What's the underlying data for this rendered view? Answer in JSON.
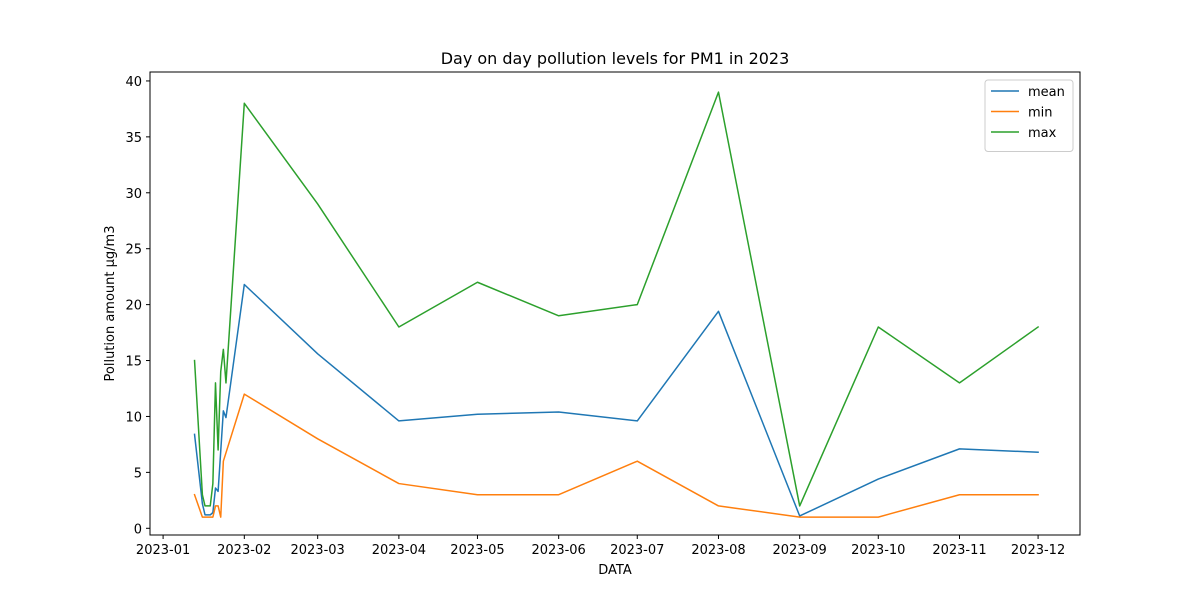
{
  "chart_data": {
    "type": "line",
    "title": "Day on day pollution levels for PM1 in 2023",
    "xlabel": "DATA",
    "ylabel": "Pollution amount µg/m3",
    "xlim": [
      "2022-12-27",
      "2023-12-17"
    ],
    "ylim": [
      -0.6,
      40.8
    ],
    "x_ticks": [
      "2023-01",
      "2023-02",
      "2023-03",
      "2023-04",
      "2023-05",
      "2023-06",
      "2023-07",
      "2023-08",
      "2023-09",
      "2023-10",
      "2023-11",
      "2023-12"
    ],
    "y_ticks": [
      0,
      5,
      10,
      15,
      20,
      25,
      30,
      35,
      40
    ],
    "grid": false,
    "legend_position": "top-right",
    "series": [
      {
        "name": "mean",
        "color": "#1f77b4",
        "points": [
          [
            "2023-01-13",
            8.4
          ],
          [
            "2023-01-16",
            2.2
          ],
          [
            "2023-01-17",
            1.2
          ],
          [
            "2023-01-19",
            1.2
          ],
          [
            "2023-01-20",
            1.4
          ],
          [
            "2023-01-21",
            3.6
          ],
          [
            "2023-01-22",
            3.3
          ],
          [
            "2023-01-24",
            10.5
          ],
          [
            "2023-01-25",
            9.9
          ],
          [
            "2023-02-01",
            21.8
          ],
          [
            "2023-03-01",
            15.6
          ],
          [
            "2023-04-01",
            9.6
          ],
          [
            "2023-05-01",
            10.2
          ],
          [
            "2023-06-01",
            10.4
          ],
          [
            "2023-07-01",
            9.6
          ],
          [
            "2023-08-01",
            19.4
          ],
          [
            "2023-09-01",
            1.1
          ],
          [
            "2023-10-01",
            4.4
          ],
          [
            "2023-11-01",
            7.1
          ],
          [
            "2023-12-01",
            6.8
          ]
        ]
      },
      {
        "name": "min",
        "color": "#ff7f0e",
        "points": [
          [
            "2023-01-13",
            3
          ],
          [
            "2023-01-16",
            1
          ],
          [
            "2023-01-17",
            1
          ],
          [
            "2023-01-19",
            1
          ],
          [
            "2023-01-20",
            1
          ],
          [
            "2023-01-21",
            2
          ],
          [
            "2023-01-22",
            2
          ],
          [
            "2023-01-23",
            1
          ],
          [
            "2023-01-24",
            6
          ],
          [
            "2023-02-01",
            12
          ],
          [
            "2023-03-01",
            8
          ],
          [
            "2023-04-01",
            4
          ],
          [
            "2023-05-01",
            3
          ],
          [
            "2023-06-01",
            3
          ],
          [
            "2023-07-01",
            6
          ],
          [
            "2023-08-01",
            2
          ],
          [
            "2023-09-01",
            1
          ],
          [
            "2023-10-01",
            1
          ],
          [
            "2023-11-01",
            3
          ],
          [
            "2023-12-01",
            3
          ]
        ]
      },
      {
        "name": "max",
        "color": "#2ca02c",
        "points": [
          [
            "2023-01-13",
            15
          ],
          [
            "2023-01-16",
            3
          ],
          [
            "2023-01-17",
            2
          ],
          [
            "2023-01-19",
            2
          ],
          [
            "2023-01-20",
            4
          ],
          [
            "2023-01-21",
            13
          ],
          [
            "2023-01-22",
            7
          ],
          [
            "2023-01-23",
            14
          ],
          [
            "2023-01-24",
            16
          ],
          [
            "2023-01-25",
            13
          ],
          [
            "2023-02-01",
            38
          ],
          [
            "2023-03-01",
            29
          ],
          [
            "2023-04-01",
            18
          ],
          [
            "2023-05-01",
            22
          ],
          [
            "2023-06-01",
            19
          ],
          [
            "2023-07-01",
            20
          ],
          [
            "2023-08-01",
            39
          ],
          [
            "2023-09-01",
            2
          ],
          [
            "2023-10-01",
            18
          ],
          [
            "2023-11-01",
            13
          ],
          [
            "2023-12-01",
            18
          ]
        ]
      }
    ]
  }
}
